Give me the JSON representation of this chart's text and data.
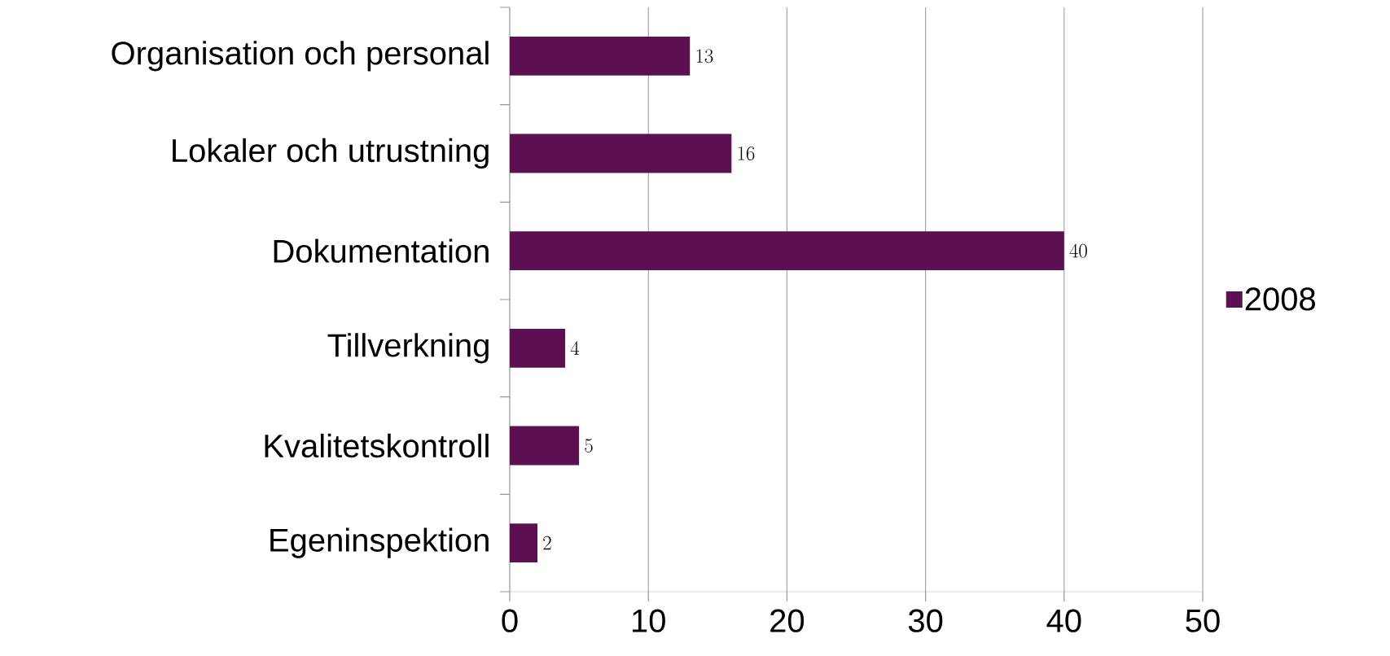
{
  "chart_data": {
    "type": "bar",
    "orientation": "horizontal",
    "categories": [
      "Organisation  och personal",
      "Lokaler och utrustning",
      "Dokumentation",
      "Tillverkning",
      "Kvalitetskontroll",
      "Egeninspektion"
    ],
    "series": [
      {
        "name": "2008",
        "color": "#5c1051",
        "values": [
          13,
          16,
          40,
          4,
          5,
          2
        ]
      }
    ],
    "xlim": [
      0,
      50
    ],
    "xticks": [
      0,
      10,
      20,
      30,
      40,
      50
    ],
    "grid": "x",
    "legend": "right",
    "data_labels": true
  }
}
